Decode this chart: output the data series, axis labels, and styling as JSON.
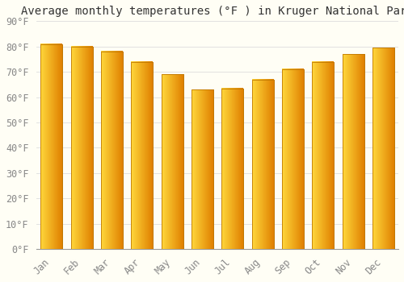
{
  "title": "Average monthly temperatures (°F ) in Kruger National Park",
  "months": [
    "Jan",
    "Feb",
    "Mar",
    "Apr",
    "May",
    "Jun",
    "Jul",
    "Aug",
    "Sep",
    "Oct",
    "Nov",
    "Dec"
  ],
  "values": [
    81,
    80,
    78,
    74,
    69,
    63,
    63.5,
    67,
    71,
    74,
    77,
    79.5
  ],
  "bar_color_left": "#FFD04A",
  "bar_color_right": "#E8920A",
  "bar_edge_color": "#C07800",
  "ylim": [
    0,
    90
  ],
  "yticks": [
    0,
    10,
    20,
    30,
    40,
    50,
    60,
    70,
    80,
    90
  ],
  "ytick_labels": [
    "0°F",
    "10°F",
    "20°F",
    "30°F",
    "40°F",
    "50°F",
    "60°F",
    "70°F",
    "80°F",
    "90°F"
  ],
  "background_color": "#FFFEF5",
  "grid_color": "#DDDDDD",
  "title_fontsize": 10,
  "tick_fontsize": 8.5,
  "font_family": "monospace"
}
